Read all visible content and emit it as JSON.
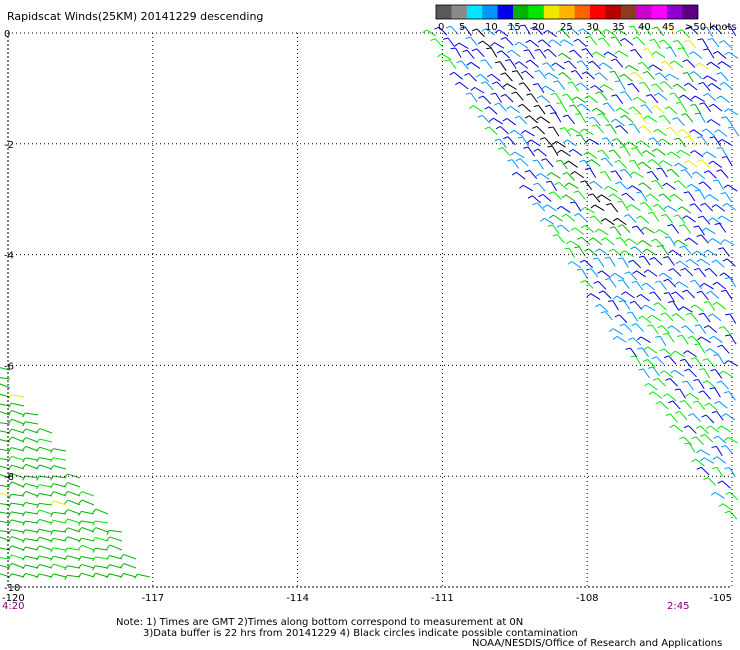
{
  "title": "Rapidscat Winds(25KM) 20141229 descending",
  "legend": {
    "colors": [
      "#595959",
      "#8a8a8a",
      "#00e6ff",
      "#0096ff",
      "#0000e6",
      "#00b400",
      "#00e600",
      "#f0e600",
      "#ffb400",
      "#ff6400",
      "#ff0000",
      "#b40000",
      "#8c3c1e",
      "#cd00cd",
      "#ff00ff",
      "#8c00cd",
      "#5a0082"
    ],
    "labels": [
      "0",
      "5",
      "10",
      "15",
      "20",
      "25",
      "30",
      "35",
      "40",
      "45",
      ">50 knots"
    ]
  },
  "map": {
    "lon_ticks": [
      "-120",
      "-117",
      "-114",
      "-111",
      "-108",
      "-105"
    ],
    "lat_ticks": [
      "0",
      "-2",
      "-4",
      "-6",
      "-8",
      "-10"
    ],
    "lon_range": [
      -120,
      -105
    ],
    "lat_range": [
      0,
      -10
    ],
    "grid": "dotted"
  },
  "times": {
    "left": "4:20",
    "right": "2:45",
    "color": "#800080"
  },
  "notes": {
    "line1": "Note: 1) Times are GMT 2)Times along bottom correspond to measurement at 0N",
    "line2": "3)Data buffer is 22 hrs from 20141229 4) Black circles indicate possible contamination",
    "credit": "NOAA/NESDIS/Office of Research and Applications"
  }
}
